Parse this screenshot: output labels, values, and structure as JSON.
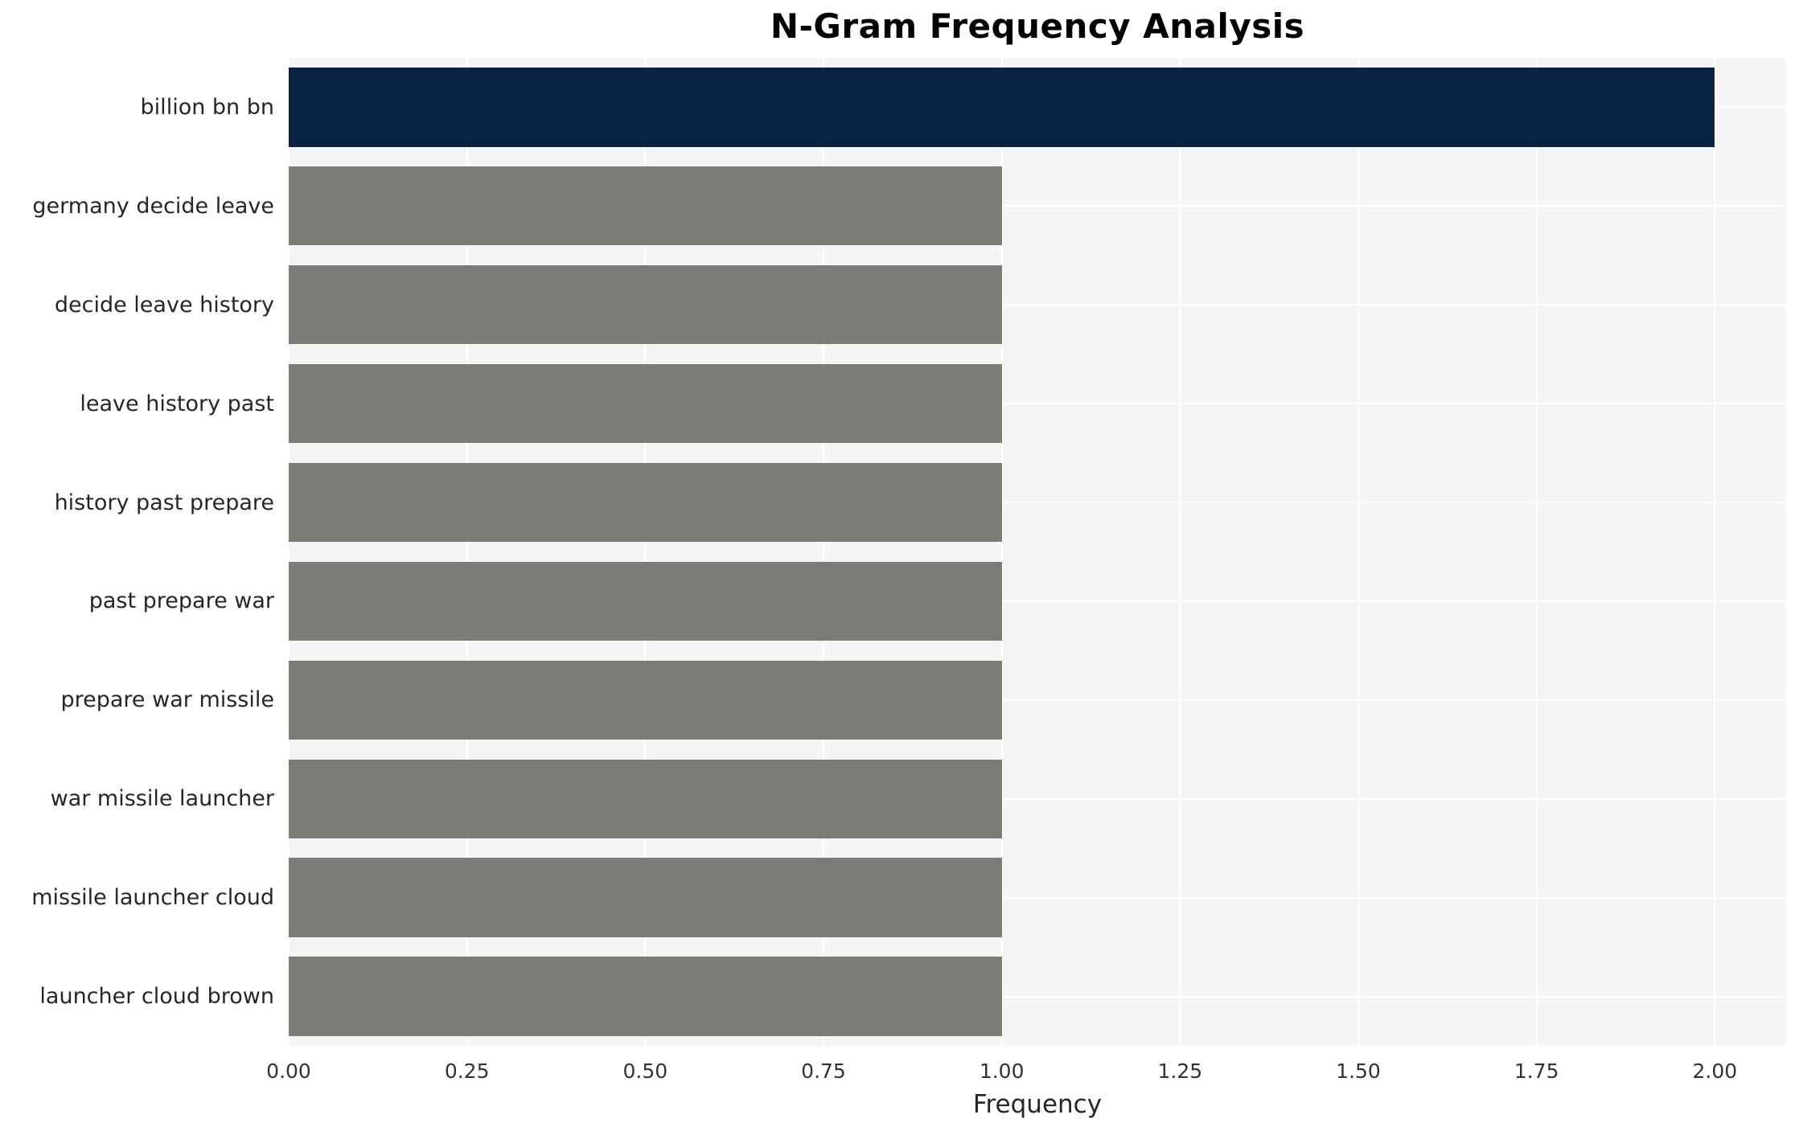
{
  "chart_data": {
    "type": "bar",
    "orientation": "horizontal",
    "title": "N-Gram Frequency Analysis",
    "xlabel": "Frequency",
    "ylabel": "",
    "categories": [
      "billion bn bn",
      "germany decide leave",
      "decide leave history",
      "leave history past",
      "history past prepare",
      "past prepare war",
      "prepare war missile",
      "war missile launcher",
      "missile launcher cloud",
      "launcher cloud brown"
    ],
    "values": [
      2.0,
      1.0,
      1.0,
      1.0,
      1.0,
      1.0,
      1.0,
      1.0,
      1.0,
      1.0
    ],
    "bar_colors": [
      "#0b2343",
      "#7c7c77",
      "#7c7c77",
      "#7c7c77",
      "#7c7c77",
      "#7c7c77",
      "#7c7c77",
      "#7c7c77",
      "#7c7c77",
      "#7c7c77"
    ],
    "xlim": [
      0,
      2.1
    ],
    "xticks": [
      "0.00",
      "0.25",
      "0.50",
      "0.75",
      "1.00",
      "1.25",
      "1.50",
      "1.75",
      "2.00"
    ],
    "xtick_values": [
      0,
      0.25,
      0.5,
      0.75,
      1.0,
      1.25,
      1.5,
      1.75,
      2.0
    ],
    "grid": true,
    "legend": "none",
    "colors": {
      "highlight_bar": "#0b2343",
      "default_bar": "#7c7c77",
      "plot_background": "#f5f5f5",
      "gridline": "#ffffff",
      "figure_background": "#ffffff",
      "text": "#262626"
    }
  }
}
